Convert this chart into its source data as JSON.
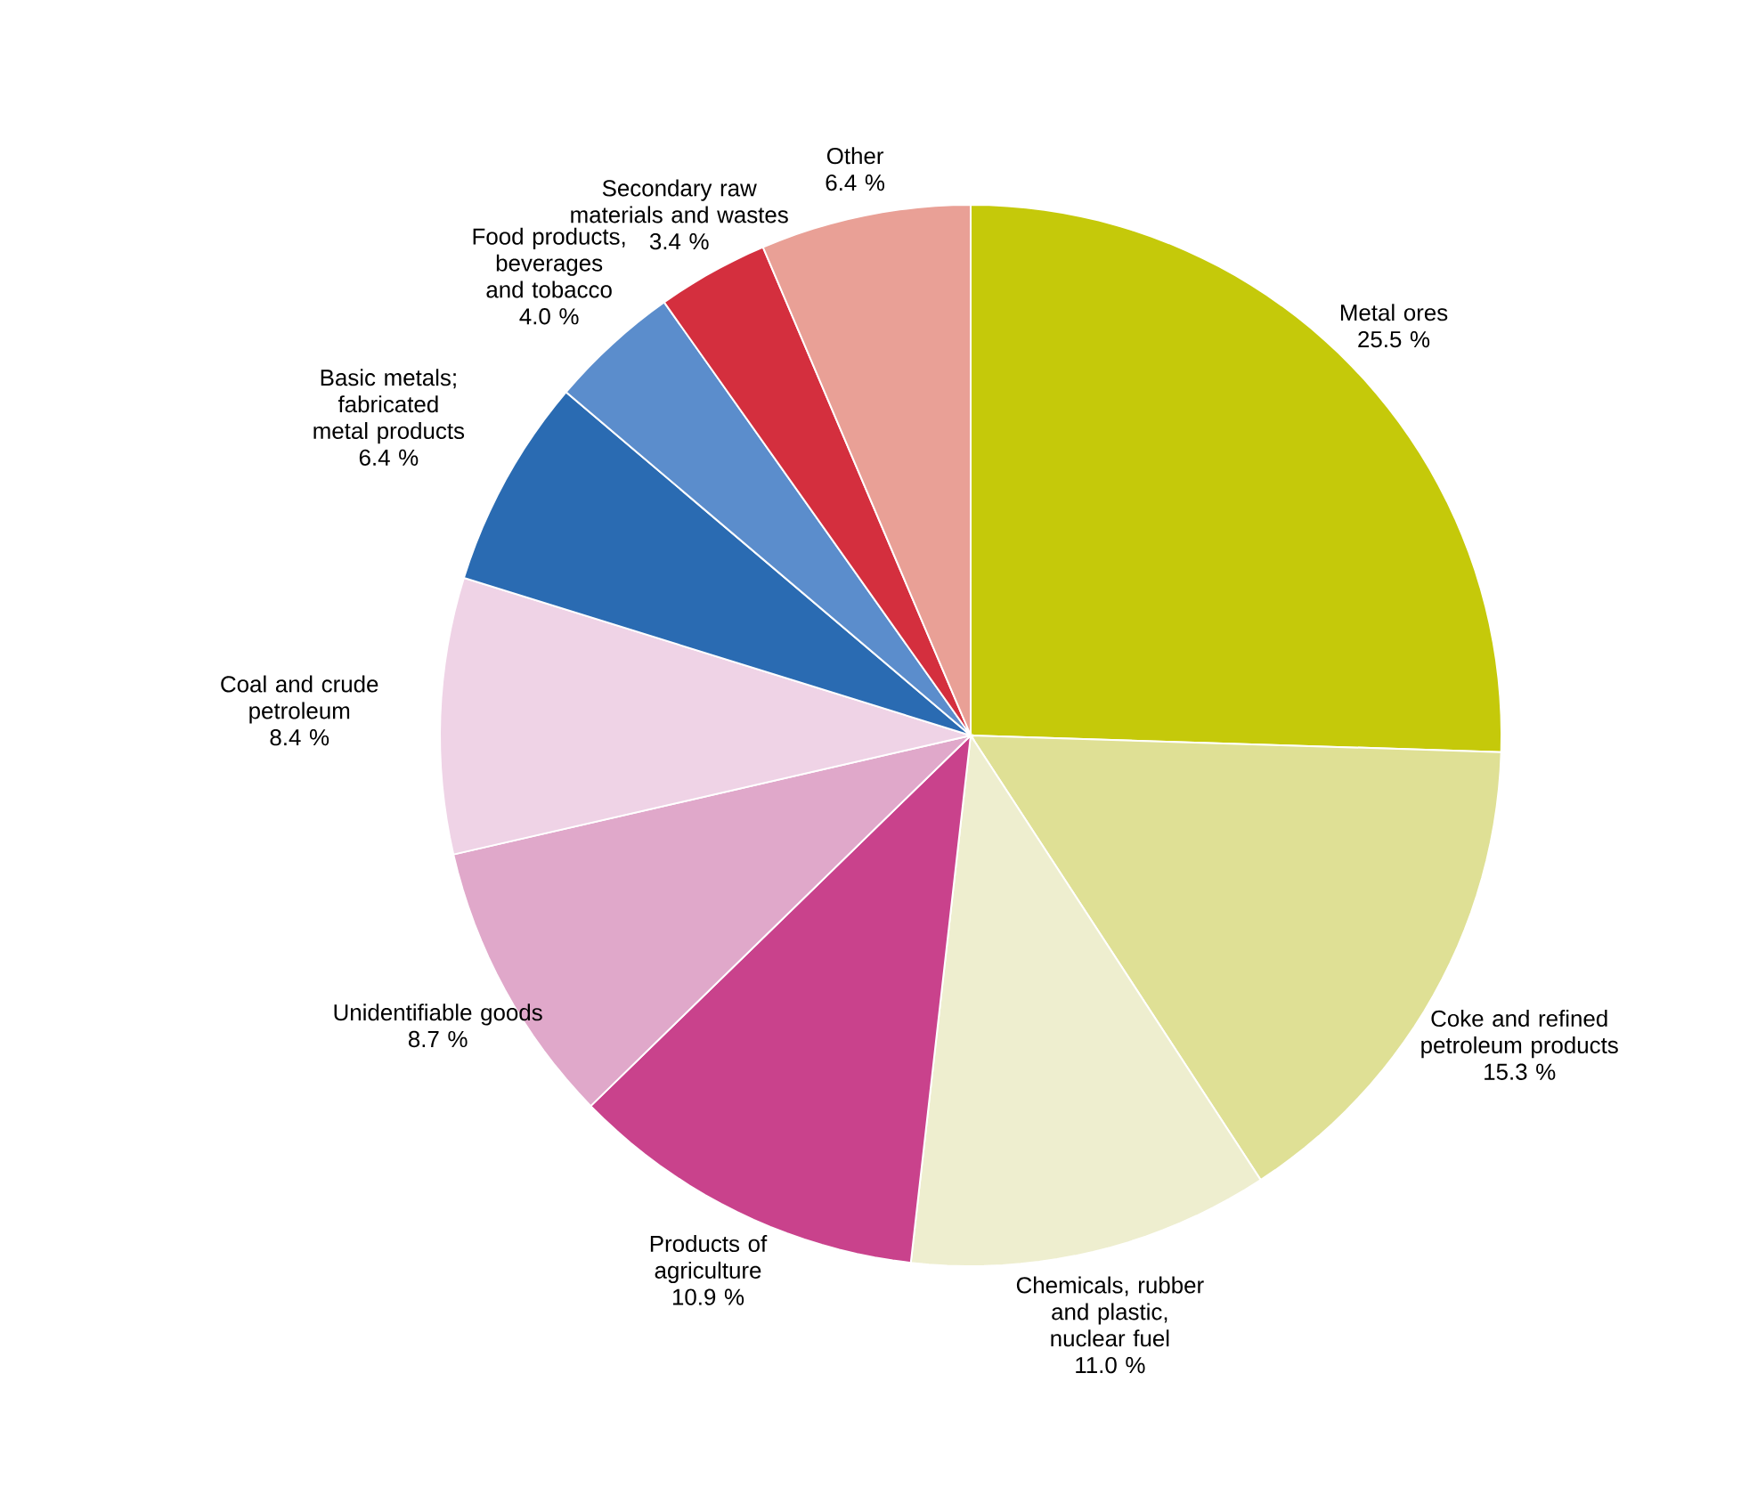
{
  "chart_data": {
    "type": "pie",
    "categories": [
      "Metal ores",
      "Coke and refined petroleum products",
      "Chemicals, rubber and plastic, nuclear fuel",
      "Products of agriculture",
      "Unidentifiable goods",
      "Coal and crude petroleum",
      "Basic metals; fabricated metal products",
      "Food products, beverages and tobacco",
      "Secondary raw materials and wastes",
      "Other"
    ],
    "values": [
      25.5,
      15.3,
      11.0,
      10.9,
      8.7,
      8.4,
      6.4,
      4.0,
      3.4,
      6.4
    ],
    "value_labels": [
      "25.5 %",
      "15.3 %",
      "11.0 %",
      "10.9 %",
      "8.7 %",
      "8.4 %",
      "6.4 %",
      "4.0 %",
      "3.4 %",
      "6.4 %"
    ],
    "colors": [
      "#c5c90a",
      "#dfe095",
      "#eeeecf",
      "#c9428c",
      "#e0a8ca",
      "#efd3e6",
      "#2a6bb2",
      "#5b8dcc",
      "#d42f3e",
      "#e9a096"
    ]
  }
}
